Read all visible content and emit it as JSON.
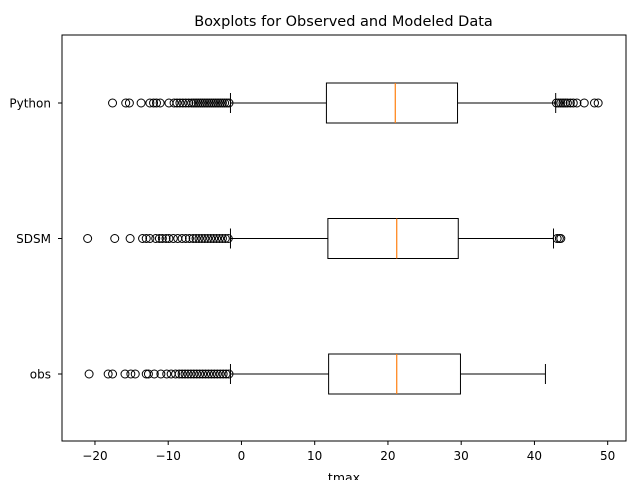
{
  "chart_data": {
    "type": "boxplot",
    "orientation": "horizontal",
    "title": "Boxplots for Observed and Modeled Data",
    "xlabel": "tmax",
    "ylabel": "",
    "xlim": [
      -24.5,
      52.5
    ],
    "xticks": [
      -20,
      -10,
      0,
      10,
      20,
      30,
      40,
      50
    ],
    "xtick_labels": [
      "−20",
      "−10",
      "0",
      "10",
      "20",
      "30",
      "40",
      "50"
    ],
    "grid": false,
    "colors": {
      "box": "#000000",
      "median": "#ff7f0e",
      "flier": "#000000"
    },
    "series": [
      {
        "name": "Python",
        "whisker_low": -1.5,
        "q1": 11.6,
        "median": 21.0,
        "q3": 29.5,
        "whisker_high": 42.9,
        "outliers": [
          -17.6,
          -15.8,
          -15.3,
          -13.7,
          -12.5,
          -12.0,
          -11.6,
          -11.1,
          -9.9,
          -9.2,
          -8.8,
          -8.4,
          -8.0,
          -7.6,
          -7.2,
          -6.8,
          -6.5,
          -6.2,
          -5.9,
          -5.6,
          -5.3,
          -5.0,
          -4.7,
          -4.4,
          -4.1,
          -3.8,
          -3.5,
          -3.2,
          -2.9,
          -2.6,
          -2.3,
          -2.0,
          -1.7,
          43.0,
          43.3,
          43.6,
          43.9,
          44.2,
          44.5,
          44.9,
          45.3,
          45.8,
          46.8,
          48.2,
          48.7
        ]
      },
      {
        "name": "SDSM",
        "whisker_low": -1.5,
        "q1": 11.8,
        "median": 21.2,
        "q3": 29.6,
        "whisker_high": 42.6,
        "outliers": [
          -21.0,
          -17.3,
          -15.2,
          -13.5,
          -13.0,
          -12.5,
          -11.7,
          -11.2,
          -10.8,
          -10.3,
          -9.9,
          -9.3,
          -8.7,
          -8.1,
          -7.6,
          -7.1,
          -6.6,
          -6.2,
          -5.8,
          -5.4,
          -5.0,
          -4.6,
          -4.2,
          -3.8,
          -3.4,
          -3.0,
          -2.6,
          -2.2,
          -1.8,
          43.1,
          43.4,
          43.6
        ]
      },
      {
        "name": "obs",
        "whisker_low": -1.5,
        "q1": 11.9,
        "median": 21.2,
        "q3": 29.9,
        "whisker_high": 41.5,
        "outliers": [
          -20.8,
          -18.2,
          -17.6,
          -15.9,
          -15.1,
          -14.5,
          -13.0,
          -12.7,
          -11.9,
          -11.0,
          -10.2,
          -9.6,
          -9.0,
          -8.5,
          -8.1,
          -7.7,
          -7.3,
          -6.9,
          -6.5,
          -6.1,
          -5.7,
          -5.3,
          -4.9,
          -4.5,
          -4.1,
          -3.7,
          -3.3,
          -2.9,
          -2.5,
          -2.1,
          -1.7
        ]
      }
    ]
  }
}
